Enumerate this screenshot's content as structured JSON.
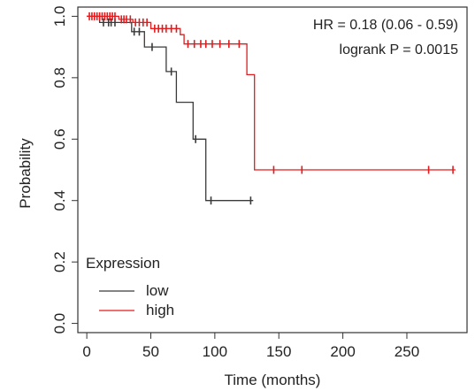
{
  "chart_data": {
    "type": "line",
    "title": "",
    "xlabel": "Time (months)",
    "ylabel": "Probability",
    "xlim": [
      -7,
      297
    ],
    "ylim": [
      -0.03,
      1.03
    ],
    "x_ticks": [
      0,
      50,
      100,
      150,
      200,
      250
    ],
    "y_ticks": [
      0.0,
      0.2,
      0.4,
      0.6,
      0.8,
      1.0
    ],
    "x_tick_labels": [
      "0",
      "50",
      "100",
      "150",
      "200",
      "250"
    ],
    "y_tick_labels": [
      "0.0",
      "0.2",
      "0.4",
      "0.6",
      "0.8",
      "1.0"
    ],
    "annotations": [
      "HR = 0.18 (0.06 - 0.59)",
      "logrank P = 0.0015"
    ],
    "legend": {
      "title": "Expression",
      "position": "bottom-left"
    },
    "series": [
      {
        "name": "low",
        "color": "#3a3a3a",
        "steps": [
          [
            0,
            1.0
          ],
          [
            10,
            1.0
          ],
          [
            10,
            0.98
          ],
          [
            35,
            0.98
          ],
          [
            35,
            0.95
          ],
          [
            45,
            0.95
          ],
          [
            45,
            0.9
          ],
          [
            62,
            0.9
          ],
          [
            62,
            0.82
          ],
          [
            70,
            0.82
          ],
          [
            70,
            0.72
          ],
          [
            83,
            0.72
          ],
          [
            83,
            0.6
          ],
          [
            93,
            0.6
          ],
          [
            93,
            0.4
          ],
          [
            130,
            0.4
          ]
        ],
        "censors": [
          [
            13,
            0.98
          ],
          [
            17,
            0.98
          ],
          [
            19,
            0.98
          ],
          [
            22,
            0.98
          ],
          [
            37,
            0.95
          ],
          [
            41,
            0.95
          ],
          [
            51,
            0.9
          ],
          [
            66,
            0.82
          ],
          [
            85,
            0.6
          ],
          [
            97,
            0.4
          ],
          [
            128,
            0.4
          ]
        ]
      },
      {
        "name": "high",
        "color": "#e41a1c",
        "steps": [
          [
            0,
            1.0
          ],
          [
            25,
            1.0
          ],
          [
            25,
            0.99
          ],
          [
            36,
            0.99
          ],
          [
            36,
            0.98
          ],
          [
            50,
            0.98
          ],
          [
            50,
            0.96
          ],
          [
            73,
            0.96
          ],
          [
            73,
            0.94
          ],
          [
            76,
            0.94
          ],
          [
            76,
            0.91
          ],
          [
            125,
            0.91
          ],
          [
            125,
            0.81
          ],
          [
            131,
            0.81
          ],
          [
            131,
            0.5
          ],
          [
            288,
            0.5
          ]
        ],
        "censors": [
          [
            2,
            1.0
          ],
          [
            4,
            1.0
          ],
          [
            6,
            1.0
          ],
          [
            8,
            1.0
          ],
          [
            10,
            1.0
          ],
          [
            12,
            1.0
          ],
          [
            14,
            1.0
          ],
          [
            16,
            1.0
          ],
          [
            18,
            1.0
          ],
          [
            20,
            1.0
          ],
          [
            22,
            1.0
          ],
          [
            27,
            0.99
          ],
          [
            29,
            0.99
          ],
          [
            31,
            0.99
          ],
          [
            34,
            0.99
          ],
          [
            38,
            0.98
          ],
          [
            41,
            0.98
          ],
          [
            44,
            0.98
          ],
          [
            47,
            0.98
          ],
          [
            53,
            0.96
          ],
          [
            56,
            0.96
          ],
          [
            59,
            0.96
          ],
          [
            62,
            0.96
          ],
          [
            66,
            0.96
          ],
          [
            70,
            0.96
          ],
          [
            79,
            0.91
          ],
          [
            84,
            0.91
          ],
          [
            89,
            0.91
          ],
          [
            93,
            0.91
          ],
          [
            98,
            0.91
          ],
          [
            104,
            0.91
          ],
          [
            111,
            0.91
          ],
          [
            119,
            0.91
          ],
          [
            146,
            0.5
          ],
          [
            168,
            0.5
          ],
          [
            267,
            0.5
          ],
          [
            286,
            0.5
          ]
        ]
      }
    ]
  }
}
